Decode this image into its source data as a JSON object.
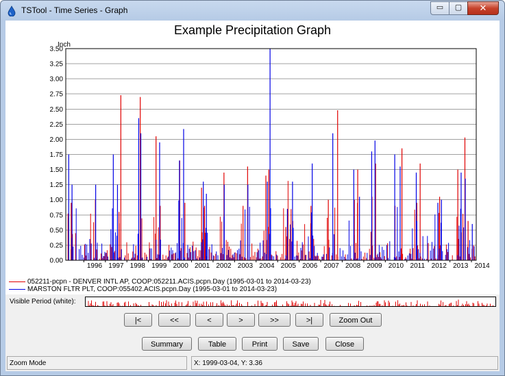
{
  "window": {
    "title": "TSTool - Time Series - Graph",
    "min_glyph": "▭",
    "max_glyph": "▢",
    "close_glyph": "✕",
    "icon": "water-drop-icon"
  },
  "colors": {
    "series1": "#e00000",
    "series2": "#0000e6",
    "grid": "#a0a0a0",
    "overview": "#e00000",
    "chrome": "#b6cbe6"
  },
  "chart_data": {
    "type": "bar",
    "title": "Example Precipitation Graph",
    "ylabel": "Inch",
    "xlabel": "",
    "ylim": [
      0,
      3.5
    ],
    "xlim": [
      "1995-03-01",
      "2014-03-23"
    ],
    "yticks": [
      "0.00",
      "0.25",
      "0.50",
      "0.75",
      "1.00",
      "1.25",
      "1.50",
      "1.75",
      "2.00",
      "2.25",
      "2.50",
      "2.75",
      "3.00",
      "3.25",
      "3.50"
    ],
    "xticks": [
      "1996",
      "1997",
      "1998",
      "1999",
      "2000",
      "2001",
      "2002",
      "2003",
      "2004",
      "2005",
      "2006",
      "2007",
      "2008",
      "2009",
      "2010",
      "2011",
      "2012",
      "2013",
      "2014"
    ],
    "grid": true,
    "legend_position": "bottom-left",
    "series": [
      {
        "name": "052211-pcpn - DENVER INTL AP, COOP:052211.ACIS.pcpn.Day (1995-03-01 to 2014-03-23)",
        "color": "#e00000",
        "peaks": [
          {
            "x": "1995-06-01",
            "y": 0.95
          },
          {
            "x": "1996-07-15",
            "y": 1.0
          },
          {
            "x": "1997-08-20",
            "y": 0.8
          },
          {
            "x": "1997-09-20",
            "y": 2.73
          },
          {
            "x": "1998-08-15",
            "y": 2.7
          },
          {
            "x": "1999-05-10",
            "y": 2.05
          },
          {
            "x": "1999-07-20",
            "y": 0.9
          },
          {
            "x": "2000-06-15",
            "y": 1.65
          },
          {
            "x": "2000-09-10",
            "y": 0.95
          },
          {
            "x": "2001-06-20",
            "y": 1.2
          },
          {
            "x": "2001-08-10",
            "y": 0.9
          },
          {
            "x": "2002-07-05",
            "y": 1.45
          },
          {
            "x": "2003-05-25",
            "y": 0.9
          },
          {
            "x": "2003-08-10",
            "y": 1.55
          },
          {
            "x": "2004-06-15",
            "y": 1.4
          },
          {
            "x": "2004-08-05",
            "y": 1.5
          },
          {
            "x": "2005-05-20",
            "y": 0.55
          },
          {
            "x": "2005-09-15",
            "y": 0.65
          },
          {
            "x": "2006-07-20",
            "y": 0.9
          },
          {
            "x": "2007-05-10",
            "y": 1.0
          },
          {
            "x": "2007-10-15",
            "y": 2.48
          },
          {
            "x": "2008-07-25",
            "y": 1.0
          },
          {
            "x": "2008-09-20",
            "y": 1.5
          },
          {
            "x": "2009-05-20",
            "y": 1.05
          },
          {
            "x": "2009-07-20",
            "y": 1.6
          },
          {
            "x": "2010-06-15",
            "y": 0.9
          },
          {
            "x": "2010-10-10",
            "y": 1.85
          },
          {
            "x": "2011-06-20",
            "y": 0.95
          },
          {
            "x": "2011-08-15",
            "y": 1.6
          },
          {
            "x": "2012-07-10",
            "y": 1.05
          },
          {
            "x": "2013-05-15",
            "y": 1.5
          },
          {
            "x": "2013-09-12",
            "y": 2.03
          },
          {
            "x": "2013-11-05",
            "y": 0.65
          }
        ]
      },
      {
        "name": "MARSTON FLTR PLT, COOP:055402.ACIS.pcpn.Day (1995-03-01 to 2014-03-23)",
        "color": "#0000e6",
        "peaks": [
          {
            "x": "1995-04-20",
            "y": 1.75
          },
          {
            "x": "1995-06-15",
            "y": 1.25
          },
          {
            "x": "1996-07-20",
            "y": 1.25
          },
          {
            "x": "1997-05-15",
            "y": 1.75
          },
          {
            "x": "1997-07-25",
            "y": 1.25
          },
          {
            "x": "1998-07-20",
            "y": 2.35
          },
          {
            "x": "1998-08-25",
            "y": 2.1
          },
          {
            "x": "1999-07-10",
            "y": 1.95
          },
          {
            "x": "2000-06-10",
            "y": 1.65
          },
          {
            "x": "2000-08-20",
            "y": 2.17
          },
          {
            "x": "2001-07-20",
            "y": 1.3
          },
          {
            "x": "2001-09-10",
            "y": 1.1
          },
          {
            "x": "2002-07-10",
            "y": 1.25
          },
          {
            "x": "2003-08-15",
            "y": 1.25
          },
          {
            "x": "2004-07-10",
            "y": 1.3
          },
          {
            "x": "2004-08-25",
            "y": 3.5
          },
          {
            "x": "2005-06-15",
            "y": 0.85
          },
          {
            "x": "2005-09-10",
            "y": 1.3
          },
          {
            "x": "2006-08-10",
            "y": 1.6
          },
          {
            "x": "2007-07-25",
            "y": 2.1
          },
          {
            "x": "2008-07-15",
            "y": 1.5
          },
          {
            "x": "2008-10-20",
            "y": 1.05
          },
          {
            "x": "2009-05-15",
            "y": 1.8
          },
          {
            "x": "2009-07-10",
            "y": 1.98
          },
          {
            "x": "2010-06-10",
            "y": 1.75
          },
          {
            "x": "2010-09-10",
            "y": 1.55
          },
          {
            "x": "2011-06-10",
            "y": 1.45
          },
          {
            "x": "2012-06-10",
            "y": 0.95
          },
          {
            "x": "2012-08-10",
            "y": 1.0
          },
          {
            "x": "2013-07-10",
            "y": 1.45
          },
          {
            "x": "2013-09-18",
            "y": 1.35
          },
          {
            "x": "2014-01-15",
            "y": 0.6
          }
        ]
      }
    ]
  },
  "lower": {
    "visible_period_label": "Visible Period (white):",
    "nav_buttons": [
      "|<",
      "<<",
      "<",
      ">",
      ">>",
      ">|",
      "Zoom Out"
    ],
    "action_buttons": [
      "Summary",
      "Table",
      "Print",
      "Save",
      "Close"
    ],
    "status_mode": "Zoom Mode",
    "status_coords": "X:  1999-03-04,  Y:  3.36"
  }
}
